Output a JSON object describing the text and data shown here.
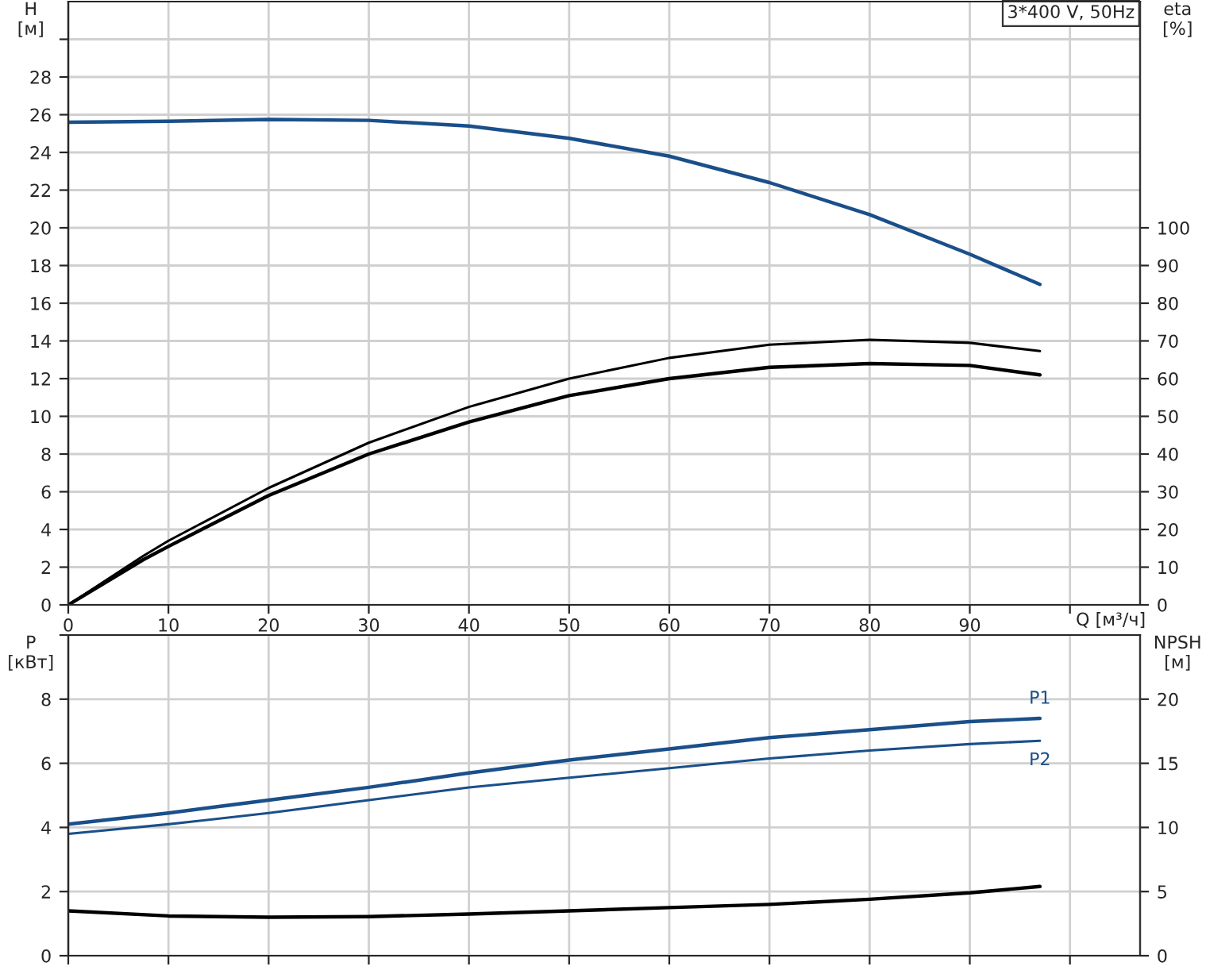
{
  "chart_data": [
    {
      "type": "line",
      "ylabel": "H\n[м]",
      "y2label": "eta\n[%]",
      "xlabel": "Q [м³/ч]",
      "annotations": [
        "3*400 V, 50Hz"
      ],
      "xlim": [
        0,
        107
      ],
      "xticks": [
        0,
        10,
        20,
        30,
        40,
        50,
        60,
        70,
        80,
        90,
        {
          "value": 100,
          "label": null
        }
      ],
      "ylim": [
        0,
        32
      ],
      "yticks": [
        0,
        2,
        4,
        6,
        8,
        10,
        12,
        14,
        16,
        18,
        20,
        22,
        24,
        26,
        28,
        {
          "value": 30,
          "label": null
        }
      ],
      "y2lim": [
        0,
        160
      ],
      "y2ticks": [
        0,
        10,
        20,
        30,
        40,
        50,
        60,
        70,
        80,
        90,
        100
      ],
      "grid": true,
      "legend": false,
      "series": [
        {
          "color": "#1a4f8a",
          "x": [
            0,
            10,
            20,
            30,
            40,
            50,
            60,
            70,
            80,
            90,
            97
          ],
          "values": [
            25.6,
            25.65,
            25.75,
            25.7,
            25.4,
            24.75,
            23.8,
            22.4,
            20.7,
            18.6,
            17.0
          ]
        },
        {
          "color": "#000000",
          "axis": "y2",
          "x": [
            0,
            7.5,
            10,
            20,
            30,
            40,
            50,
            60,
            70,
            80,
            90,
            97
          ],
          "values": [
            0,
            13,
            17,
            31,
            43,
            52.5,
            60,
            65.5,
            69,
            70.3,
            69.5,
            67.3
          ]
        },
        {
          "color": "#000000",
          "axis": "y2",
          "x": [
            0,
            7.5,
            10,
            20,
            30,
            40,
            50,
            60,
            70,
            80,
            90,
            97
          ],
          "values": [
            0,
            12,
            15.5,
            29,
            40,
            48.5,
            55.5,
            60,
            63,
            64,
            63.5,
            61
          ]
        }
      ]
    },
    {
      "type": "line",
      "ylabel": "P\n[кВт]",
      "y2label": "NPSH\n[м]",
      "xlim": [
        0,
        107
      ],
      "xticks": [
        {
          "value": 0,
          "label": null
        },
        {
          "value": 10,
          "label": null
        },
        {
          "value": 20,
          "label": null
        },
        {
          "value": 30,
          "label": null
        },
        {
          "value": 40,
          "label": null
        },
        {
          "value": 50,
          "label": null
        },
        {
          "value": 60,
          "label": null
        },
        {
          "value": 70,
          "label": null
        },
        {
          "value": 80,
          "label": null
        },
        {
          "value": 90,
          "label": null
        },
        {
          "value": 100,
          "label": null
        }
      ],
      "ylim": [
        0,
        10
      ],
      "yticks": [
        0,
        2,
        4,
        6,
        8,
        {
          "value": 10,
          "label": null
        }
      ],
      "y2lim": [
        0,
        25
      ],
      "y2ticks": [
        0,
        5,
        10,
        15,
        20
      ],
      "grid": true,
      "legend": false,
      "tick_labels": "y",
      "series": [
        {
          "name": "P1",
          "color": "#1a4f8a",
          "x": [
            0,
            10,
            20,
            30,
            40,
            50,
            60,
            70,
            80,
            90,
            97
          ],
          "values": [
            4.1,
            4.45,
            4.85,
            5.25,
            5.7,
            6.1,
            6.45,
            6.8,
            7.05,
            7.3,
            7.4
          ]
        },
        {
          "name": "P2",
          "color": "#1a4f8a",
          "x": [
            0,
            10,
            20,
            30,
            40,
            50,
            60,
            70,
            80,
            90,
            97
          ],
          "values": [
            3.8,
            4.1,
            4.45,
            4.85,
            5.25,
            5.55,
            5.85,
            6.15,
            6.4,
            6.6,
            6.7
          ]
        },
        {
          "color": "#000000",
          "axis": "y2",
          "x": [
            0,
            10,
            20,
            30,
            40,
            50,
            60,
            70,
            80,
            90,
            97
          ],
          "values": [
            3.5,
            3.1,
            3.0,
            3.05,
            3.25,
            3.5,
            3.75,
            4.0,
            4.4,
            4.9,
            5.4
          ]
        }
      ]
    }
  ]
}
